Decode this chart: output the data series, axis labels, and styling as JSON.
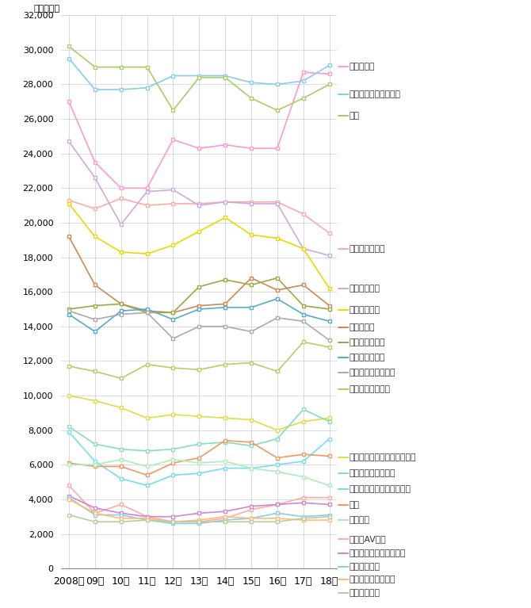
{
  "years": [
    2008,
    2009,
    2010,
    2011,
    2012,
    2013,
    2014,
    2015,
    2016,
    2017,
    2018
  ],
  "year_labels": [
    "2008年",
    "09年",
    "10年",
    "11年",
    "12年",
    "13年",
    "14年",
    "15年",
    "16年",
    "17年",
    "18年"
  ],
  "ylabel": "（千万円）",
  "ylim": [
    0,
    32000
  ],
  "yticks": [
    0,
    2000,
    4000,
    6000,
    8000,
    10000,
    12000,
    14000,
    16000,
    18000,
    20000,
    22000,
    24000,
    26000,
    28000,
    30000,
    32000
  ],
  "background_color": "#ffffff",
  "grid_color": "#cccccc",
  "series": [
    {
      "name": "情報・通信",
      "color": "#FF99CC",
      "values": [
        27000,
        23500,
        22000,
        22000,
        24800,
        24300,
        24500,
        24300,
        24300,
        28700,
        28600
      ]
    },
    {
      "name": "化妝品・トイレタリー",
      "color": "#88CCEE",
      "values": [
        29500,
        27700,
        27700,
        27800,
        28500,
        28500,
        28500,
        28100,
        28000,
        28200,
        29100
      ]
    },
    {
      "name": "食品",
      "color": "#AACC66",
      "values": [
        30200,
        29000,
        29000,
        29000,
        26500,
        28400,
        28400,
        27200,
        26500,
        27200,
        28000
      ]
    },
    {
      "name": "交通・レジャー",
      "color": "#FFAAAA",
      "values": [
        21300,
        20800,
        21400,
        21000,
        21100,
        21100,
        21200,
        21200,
        21200,
        20500,
        19400
      ]
    },
    {
      "name": "飲料・嗜好品",
      "color": "#CCAADD",
      "values": [
        24700,
        22600,
        19900,
        21800,
        21900,
        21000,
        21200,
        21100,
        21100,
        18500,
        18100
      ]
    },
    {
      "name": "流通・小売業",
      "color": "#EED700",
      "values": [
        21100,
        19200,
        18300,
        18200,
        18700,
        19500,
        20300,
        19300,
        19100,
        18500,
        16200
      ]
    },
    {
      "name": "金融・保険",
      "color": "#CC8855",
      "values": [
        19200,
        16400,
        15300,
        14900,
        14800,
        15200,
        15300,
        16800,
        16100,
        16400,
        15200
      ]
    },
    {
      "name": "薬品・医療用品",
      "color": "#99AA44",
      "values": [
        15000,
        15200,
        15300,
        14800,
        14800,
        16300,
        16700,
        16400,
        16800,
        15200,
        15000
      ]
    },
    {
      "name": "自動車・関連品",
      "color": "#55AACC",
      "values": [
        14700,
        13700,
        14900,
        15000,
        14400,
        15000,
        15100,
        15100,
        15600,
        14700,
        14300
      ]
    },
    {
      "name": "外食・各種サービス",
      "color": "#AAAAAA",
      "values": [
        14900,
        14400,
        14700,
        14800,
        13300,
        14000,
        14000,
        13700,
        14500,
        14300,
        13200
      ]
    },
    {
      "name": "不動産・住宅設備",
      "color": "#BBCC66",
      "values": [
        11700,
        11400,
        11000,
        11800,
        11600,
        11500,
        11800,
        11900,
        11400,
        13100,
        12800
      ]
    },
    {
      "name": "ファッション・アクセサリー",
      "color": "#DDDD44",
      "values": [
        10000,
        9700,
        9300,
        8700,
        8900,
        8800,
        8700,
        8600,
        8000,
        8500,
        8700
      ]
    },
    {
      "name": "趣味・スポーツ用品",
      "color": "#88DDBB",
      "values": [
        8200,
        7200,
        6900,
        6800,
        6900,
        7200,
        7300,
        7100,
        7500,
        9200,
        8500
      ]
    },
    {
      "name": "教育・医療サービス・宗教",
      "color": "#77DDEE",
      "values": [
        7900,
        6200,
        5200,
        4800,
        5400,
        5500,
        5800,
        5800,
        6000,
        6200,
        7500
      ]
    },
    {
      "name": "出版",
      "color": "#EE9966",
      "values": [
        6100,
        5900,
        5900,
        5400,
        6100,
        6400,
        7400,
        7300,
        6400,
        6600,
        6500
      ]
    },
    {
      "name": "家庭用品",
      "color": "#AAEEBB",
      "values": [
        6000,
        6000,
        6300,
        5900,
        6300,
        6100,
        6200,
        5800,
        5600,
        5300,
        4800
      ]
    },
    {
      "name": "家電・AV機器",
      "color": "#FFAAAA",
      "values": [
        4800,
        3200,
        3700,
        3000,
        2700,
        2700,
        2900,
        3400,
        3700,
        4100,
        4100
      ]
    },
    {
      "name": "エネルギー・素材・機械",
      "color": "#CC88CC",
      "values": [
        4200,
        3500,
        3200,
        3000,
        3000,
        3200,
        3300,
        3600,
        3700,
        3800,
        3700
      ]
    },
    {
      "name": "案内・その他",
      "color": "#88CCEE",
      "values": [
        4100,
        3100,
        3100,
        2800,
        2600,
        2600,
        2800,
        2900,
        3200,
        3000,
        3100
      ]
    },
    {
      "name": "精密機器・事務用品",
      "color": "#FFBB77",
      "values": [
        4000,
        3200,
        2900,
        2900,
        2700,
        2800,
        3000,
        2900,
        2900,
        2800,
        2800
      ]
    },
    {
      "name": "官公庁・団体",
      "color": "#BBCC99",
      "values": [
        3100,
        2700,
        2700,
        2800,
        2700,
        2700,
        2700,
        2700,
        2700,
        2900,
        3000
      ]
    }
  ],
  "legend_entries": [
    {
      "name": "情報・通信",
      "idx": 0
    },
    {
      "name": "化妝品・トイレタリー",
      "idx": 1
    },
    {
      "name": "食品",
      "idx": 2
    },
    {
      "name": "交通・レジャー",
      "idx": 3
    },
    {
      "name": "飲料・嗜好品",
      "idx": 4
    },
    {
      "name": "流通・小売業",
      "idx": 5
    },
    {
      "name": "金融・保険",
      "idx": 6
    },
    {
      "name": "薬品・医療用品",
      "idx": 7
    },
    {
      "name": "自動車・関連品",
      "idx": 8
    },
    {
      "name": "外食・各種サービス",
      "idx": 9
    },
    {
      "name": "不動産・住宅設備",
      "idx": 10
    },
    {
      "name": "ファッション・アクセサリー",
      "idx": 11
    },
    {
      "name": "趣味・スポーツ用品",
      "idx": 12
    },
    {
      "name": "教育・医療サービス・宗教",
      "idx": 13
    },
    {
      "name": "出版",
      "idx": 14
    },
    {
      "name": "家庭用品",
      "idx": 15
    },
    {
      "name": "家電・AV機器",
      "idx": 16
    },
    {
      "name": "エネルギー・素材・機械",
      "idx": 17
    },
    {
      "name": "案内・その他",
      "idx": 18
    },
    {
      "name": "精密機器・事務用品",
      "idx": 19
    },
    {
      "name": "官公庁・団体",
      "idx": 20
    }
  ]
}
